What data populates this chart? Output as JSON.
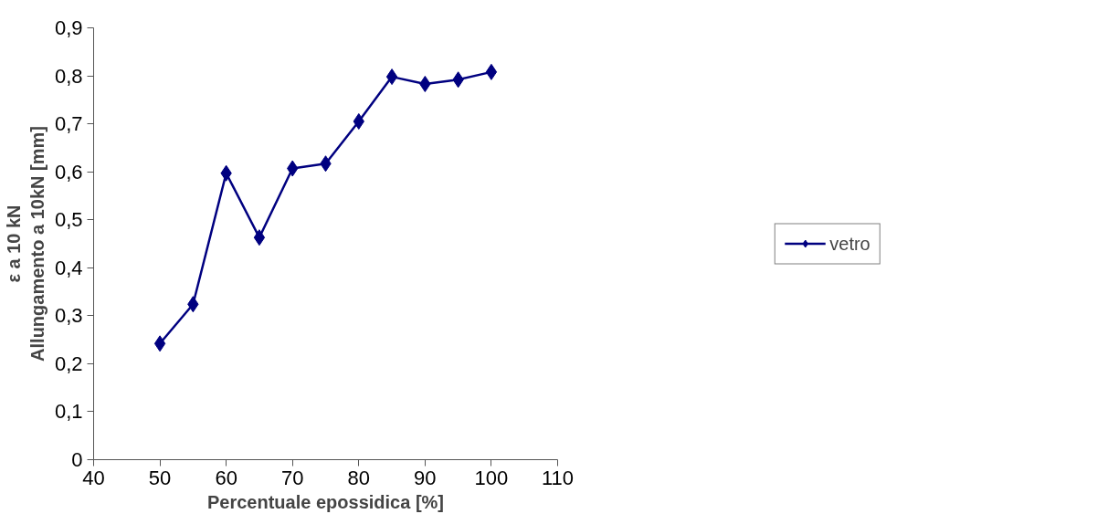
{
  "chart_data": {
    "type": "line",
    "xlabel": "Percentuale epossidica [%]",
    "ylabel": "ε a 10 kN\nAllungamento a 10kN [mm]",
    "x": [
      50,
      55,
      60,
      65,
      70,
      75,
      80,
      85,
      90,
      95,
      100
    ],
    "series": [
      {
        "name": "vetro",
        "color": "#000080",
        "values": [
          0.242,
          0.324,
          0.597,
          0.463,
          0.607,
          0.617,
          0.705,
          0.798,
          0.783,
          0.792,
          0.808
        ]
      }
    ],
    "xlim": [
      40,
      110
    ],
    "xticks": [
      40,
      50,
      60,
      70,
      80,
      90,
      100,
      110
    ],
    "ylim": [
      0,
      0.9
    ],
    "yticks": [
      {
        "value": 0,
        "label": "0"
      },
      {
        "value": 0.1,
        "label": "0,1"
      },
      {
        "value": 0.2,
        "label": "0,2"
      },
      {
        "value": 0.3,
        "label": "0,3"
      },
      {
        "value": 0.4,
        "label": "0,4"
      },
      {
        "value": 0.5,
        "label": "0,5"
      },
      {
        "value": 0.6,
        "label": "0,6"
      },
      {
        "value": 0.7,
        "label": "0,7"
      },
      {
        "value": 0.8,
        "label": "0,8"
      },
      {
        "value": 0.9,
        "label": "0,9"
      }
    ],
    "grid": false,
    "legend": "right",
    "marker": "diamond",
    "line_style": "solid"
  }
}
